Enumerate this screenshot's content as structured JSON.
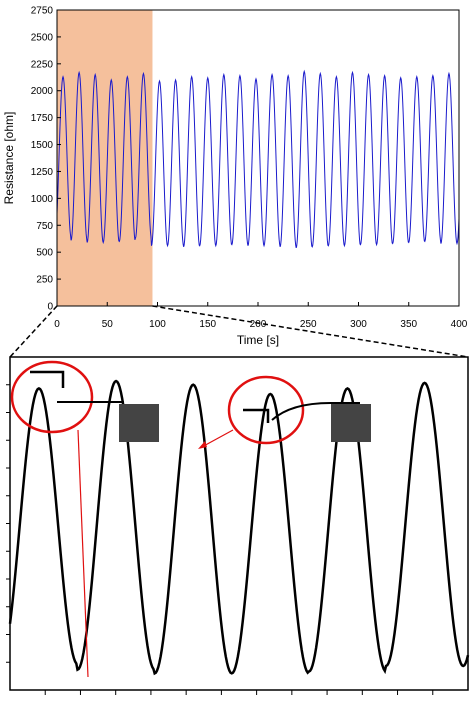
{
  "chart_data": [
    {
      "type": "line",
      "xlabel": "Time [s]",
      "ylabel": "Resistance [ohm]",
      "xlim": [
        0,
        400
      ],
      "ylim": [
        0,
        2750
      ],
      "xticks": [
        "0",
        "50",
        "100",
        "150",
        "200",
        "250",
        "300",
        "350",
        "400"
      ],
      "yticks": [
        "0",
        "250",
        "500",
        "750",
        "1000",
        "1250",
        "1500",
        "1750",
        "2000",
        "2250",
        "2500",
        "2750"
      ],
      "grid": false,
      "series_color": "#1a1acc",
      "highlight": {
        "x_range": [
          0,
          95
        ],
        "color": "#f5c09c"
      },
      "signal": {
        "x_start": 0,
        "x_end": 400,
        "cycles": [
          {
            "x_peak": 6,
            "max": 2130,
            "min": 640
          },
          {
            "x_peak": 22,
            "max": 2170,
            "min": 610
          },
          {
            "x_peak": 38,
            "max": 2150,
            "min": 590
          },
          {
            "x_peak": 54,
            "max": 2100,
            "min": 590
          },
          {
            "x_peak": 70,
            "max": 2130,
            "min": 600
          },
          {
            "x_peak": 86,
            "max": 2160,
            "min": 630
          },
          {
            "x_peak": 102,
            "max": 2090,
            "min": 560
          },
          {
            "x_peak": 118,
            "max": 2100,
            "min": 560
          },
          {
            "x_peak": 134,
            "max": 2130,
            "min": 550
          },
          {
            "x_peak": 150,
            "max": 2120,
            "min": 560
          },
          {
            "x_peak": 166,
            "max": 2150,
            "min": 560
          },
          {
            "x_peak": 182,
            "max": 2140,
            "min": 570
          },
          {
            "x_peak": 198,
            "max": 2110,
            "min": 560
          },
          {
            "x_peak": 214,
            "max": 2150,
            "min": 560
          },
          {
            "x_peak": 230,
            "max": 2140,
            "min": 550
          },
          {
            "x_peak": 246,
            "max": 2180,
            "min": 540
          },
          {
            "x_peak": 262,
            "max": 2160,
            "min": 550
          },
          {
            "x_peak": 278,
            "max": 2130,
            "min": 560
          },
          {
            "x_peak": 294,
            "max": 2170,
            "min": 560
          },
          {
            "x_peak": 310,
            "max": 2150,
            "min": 570
          },
          {
            "x_peak": 326,
            "max": 2140,
            "min": 570
          },
          {
            "x_peak": 342,
            "max": 2120,
            "min": 580
          },
          {
            "x_peak": 358,
            "max": 2130,
            "min": 590
          },
          {
            "x_peak": 374,
            "max": 2140,
            "min": 600
          },
          {
            "x_peak": 390,
            "max": 2160,
            "min": 580
          }
        ]
      }
    },
    {
      "type": "line",
      "xlabel": "",
      "ylabel": "",
      "xlim": [
        0,
        95
      ],
      "ylim": [
        500,
        2300
      ],
      "series_color": "#000000",
      "signal": {
        "x_start": 0,
        "x_end": 95,
        "cycles": [
          {
            "x_peak": 6,
            "max": 2130,
            "min": 640
          },
          {
            "x_peak": 22,
            "max": 2170,
            "min": 610
          },
          {
            "x_peak": 38,
            "max": 2150,
            "min": 590
          },
          {
            "x_peak": 54,
            "max": 2100,
            "min": 590
          },
          {
            "x_peak": 70,
            "max": 2130,
            "min": 600
          },
          {
            "x_peak": 86,
            "max": 2160,
            "min": 630
          }
        ]
      },
      "annotations": [
        {
          "kind": "circle",
          "color": "#e01010",
          "points_to": "trough",
          "x": 14
        },
        {
          "kind": "circle",
          "color": "#e01010",
          "points_to": "peak",
          "x": 38
        }
      ],
      "zoom_of": "highlight"
    }
  ],
  "colors": {
    "axis": "#000000",
    "highlight": "#f5c09c",
    "annotation": "#e01010",
    "block": "#444444"
  }
}
